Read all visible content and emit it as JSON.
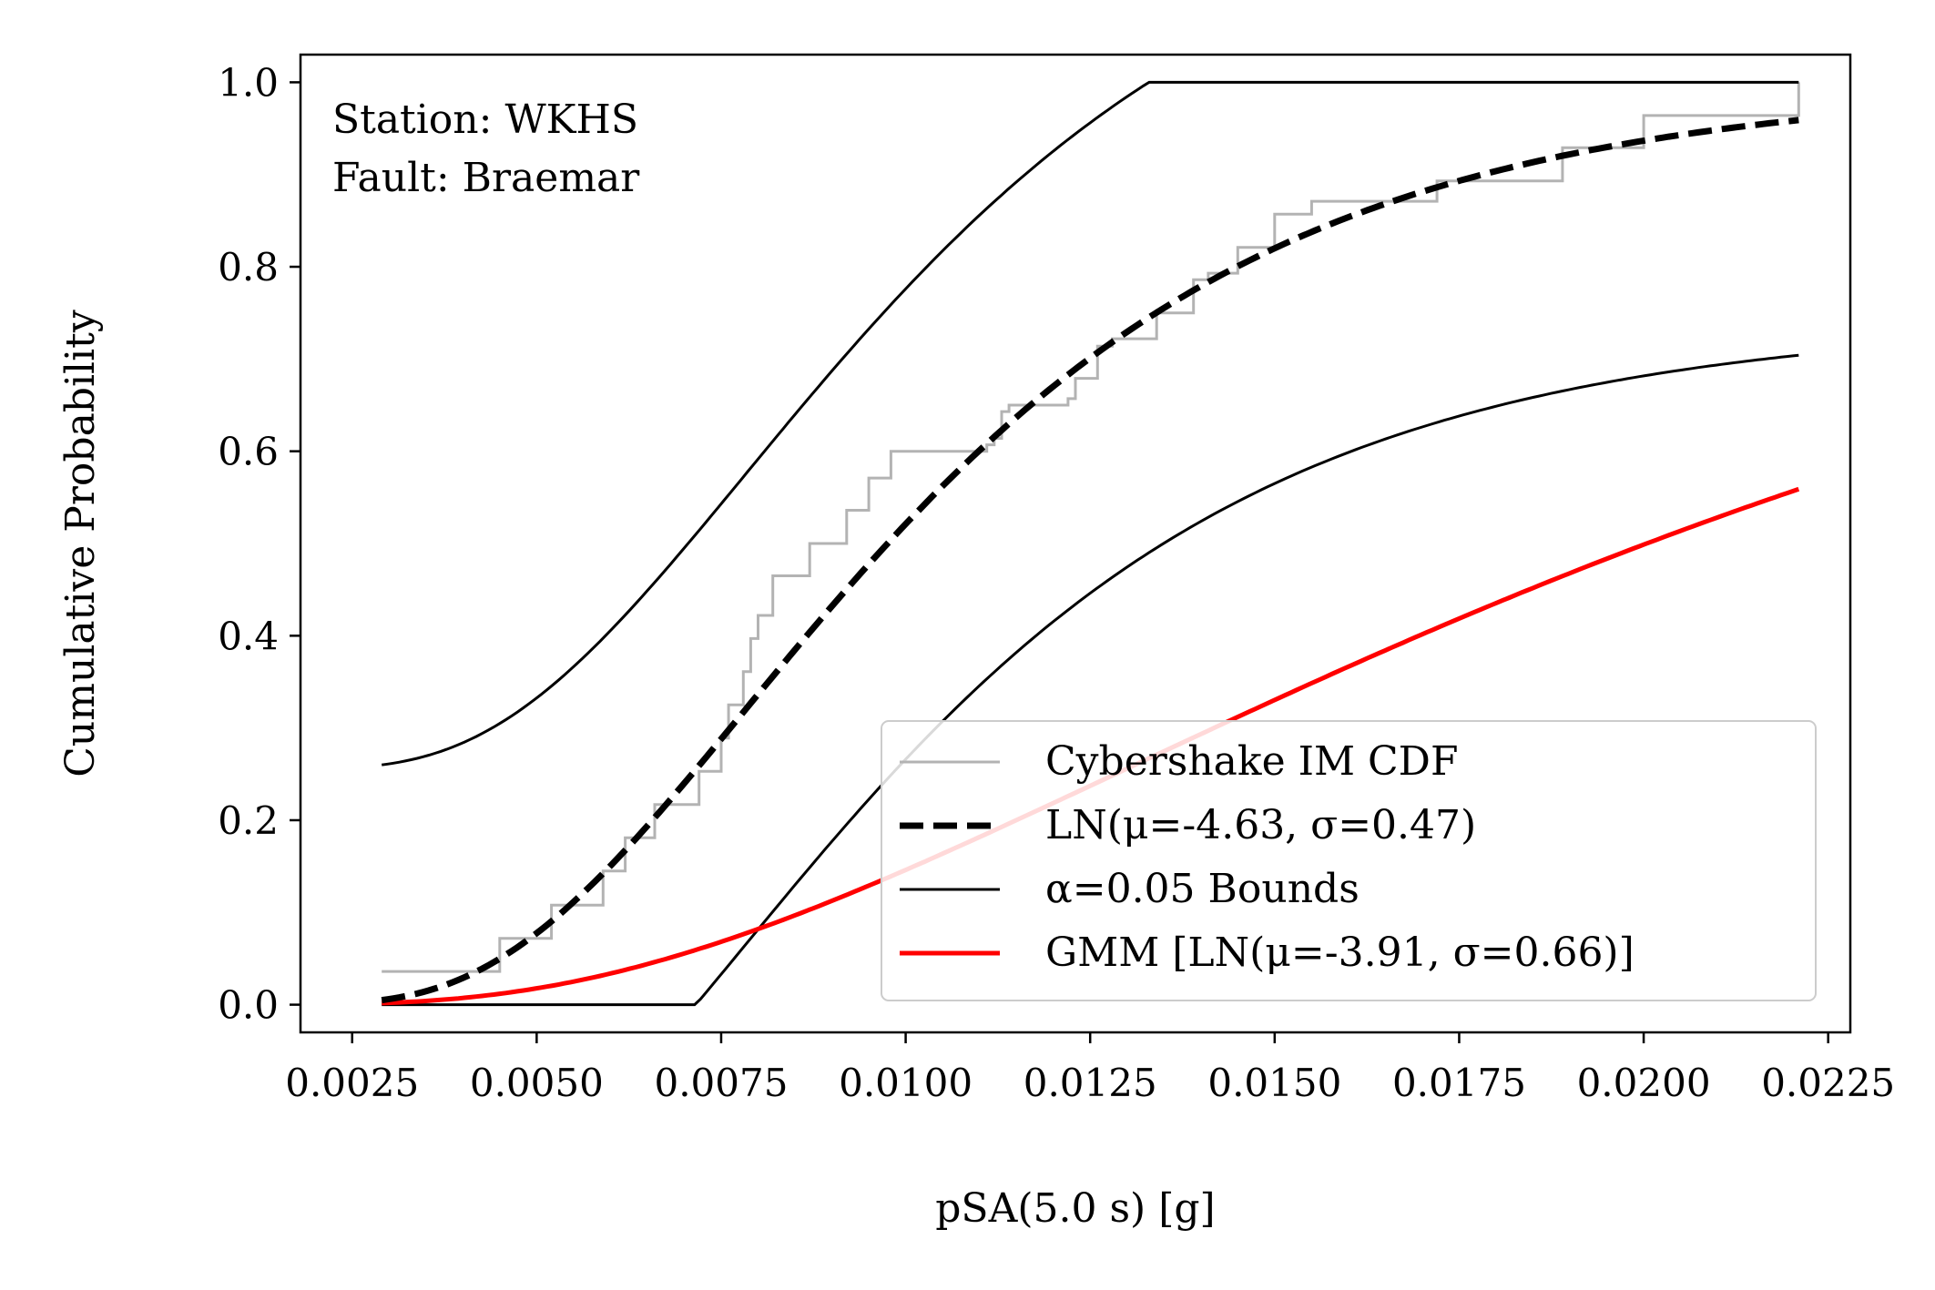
{
  "chart_data": {
    "type": "line",
    "xlabel": "pSA(5.0 s) [g]",
    "ylabel": "Cumulative Probability",
    "xlim": [
      0.0018,
      0.0228
    ],
    "ylim": [
      -0.03,
      1.03
    ],
    "xticks": [
      0.0025,
      0.005,
      0.0075,
      0.01,
      0.0125,
      0.015,
      0.0175,
      0.02,
      0.0225
    ],
    "xtick_labels": [
      "0.0025",
      "0.0050",
      "0.0075",
      "0.0100",
      "0.0125",
      "0.0150",
      "0.0175",
      "0.0200",
      "0.0225"
    ],
    "yticks": [
      0.0,
      0.2,
      0.4,
      0.6,
      0.8,
      1.0
    ],
    "ytick_labels": [
      "0.0",
      "0.2",
      "0.4",
      "0.6",
      "0.8",
      "1.0"
    ],
    "annotation": [
      "Station: WKHS",
      "Fault: Braemar"
    ],
    "legend_position": "lower-right",
    "grid": false,
    "series": [
      {
        "name": "Cybershake IM CDF",
        "kind": "step",
        "color": "#b3b3b3",
        "x": [
          0.0029,
          0.0045,
          0.0052,
          0.0059,
          0.0062,
          0.0066,
          0.0072,
          0.0075,
          0.0076,
          0.0078,
          0.0079,
          0.008,
          0.0082,
          0.0087,
          0.0092,
          0.0095,
          0.0098,
          0.0111,
          0.0112,
          0.0113,
          0.0114,
          0.0122,
          0.0123,
          0.0126,
          0.0128,
          0.0134,
          0.0139,
          0.0141,
          0.0145,
          0.015,
          0.0155,
          0.0172,
          0.0189,
          0.02,
          0.0221
        ],
        "values": [
          0.036,
          0.072,
          0.108,
          0.145,
          0.181,
          0.217,
          0.253,
          0.289,
          0.325,
          0.361,
          0.397,
          0.422,
          0.465,
          0.5,
          0.536,
          0.571,
          0.6,
          0.607,
          0.614,
          0.643,
          0.65,
          0.657,
          0.679,
          0.714,
          0.722,
          0.75,
          0.786,
          0.793,
          0.821,
          0.857,
          0.871,
          0.893,
          0.929,
          0.964,
          1.0
        ]
      },
      {
        "name": "LN(μ=-4.63, σ=0.47)",
        "kind": "lognormal_cdf",
        "mu": -4.63,
        "sigma": 0.47,
        "color": "#000000",
        "dashed": true
      },
      {
        "name": "α=0.05 Bounds",
        "kind": "ks_bounds",
        "offset": 0.255,
        "cap_max": 1.0,
        "color": "#000000"
      },
      {
        "name": "GMM [LN(μ=-3.91, σ=0.66)]",
        "kind": "lognormal_cdf",
        "mu": -3.91,
        "sigma": 0.66,
        "color": "#ff0000"
      }
    ],
    "x_range": [
      0.0029,
      0.0221
    ]
  }
}
